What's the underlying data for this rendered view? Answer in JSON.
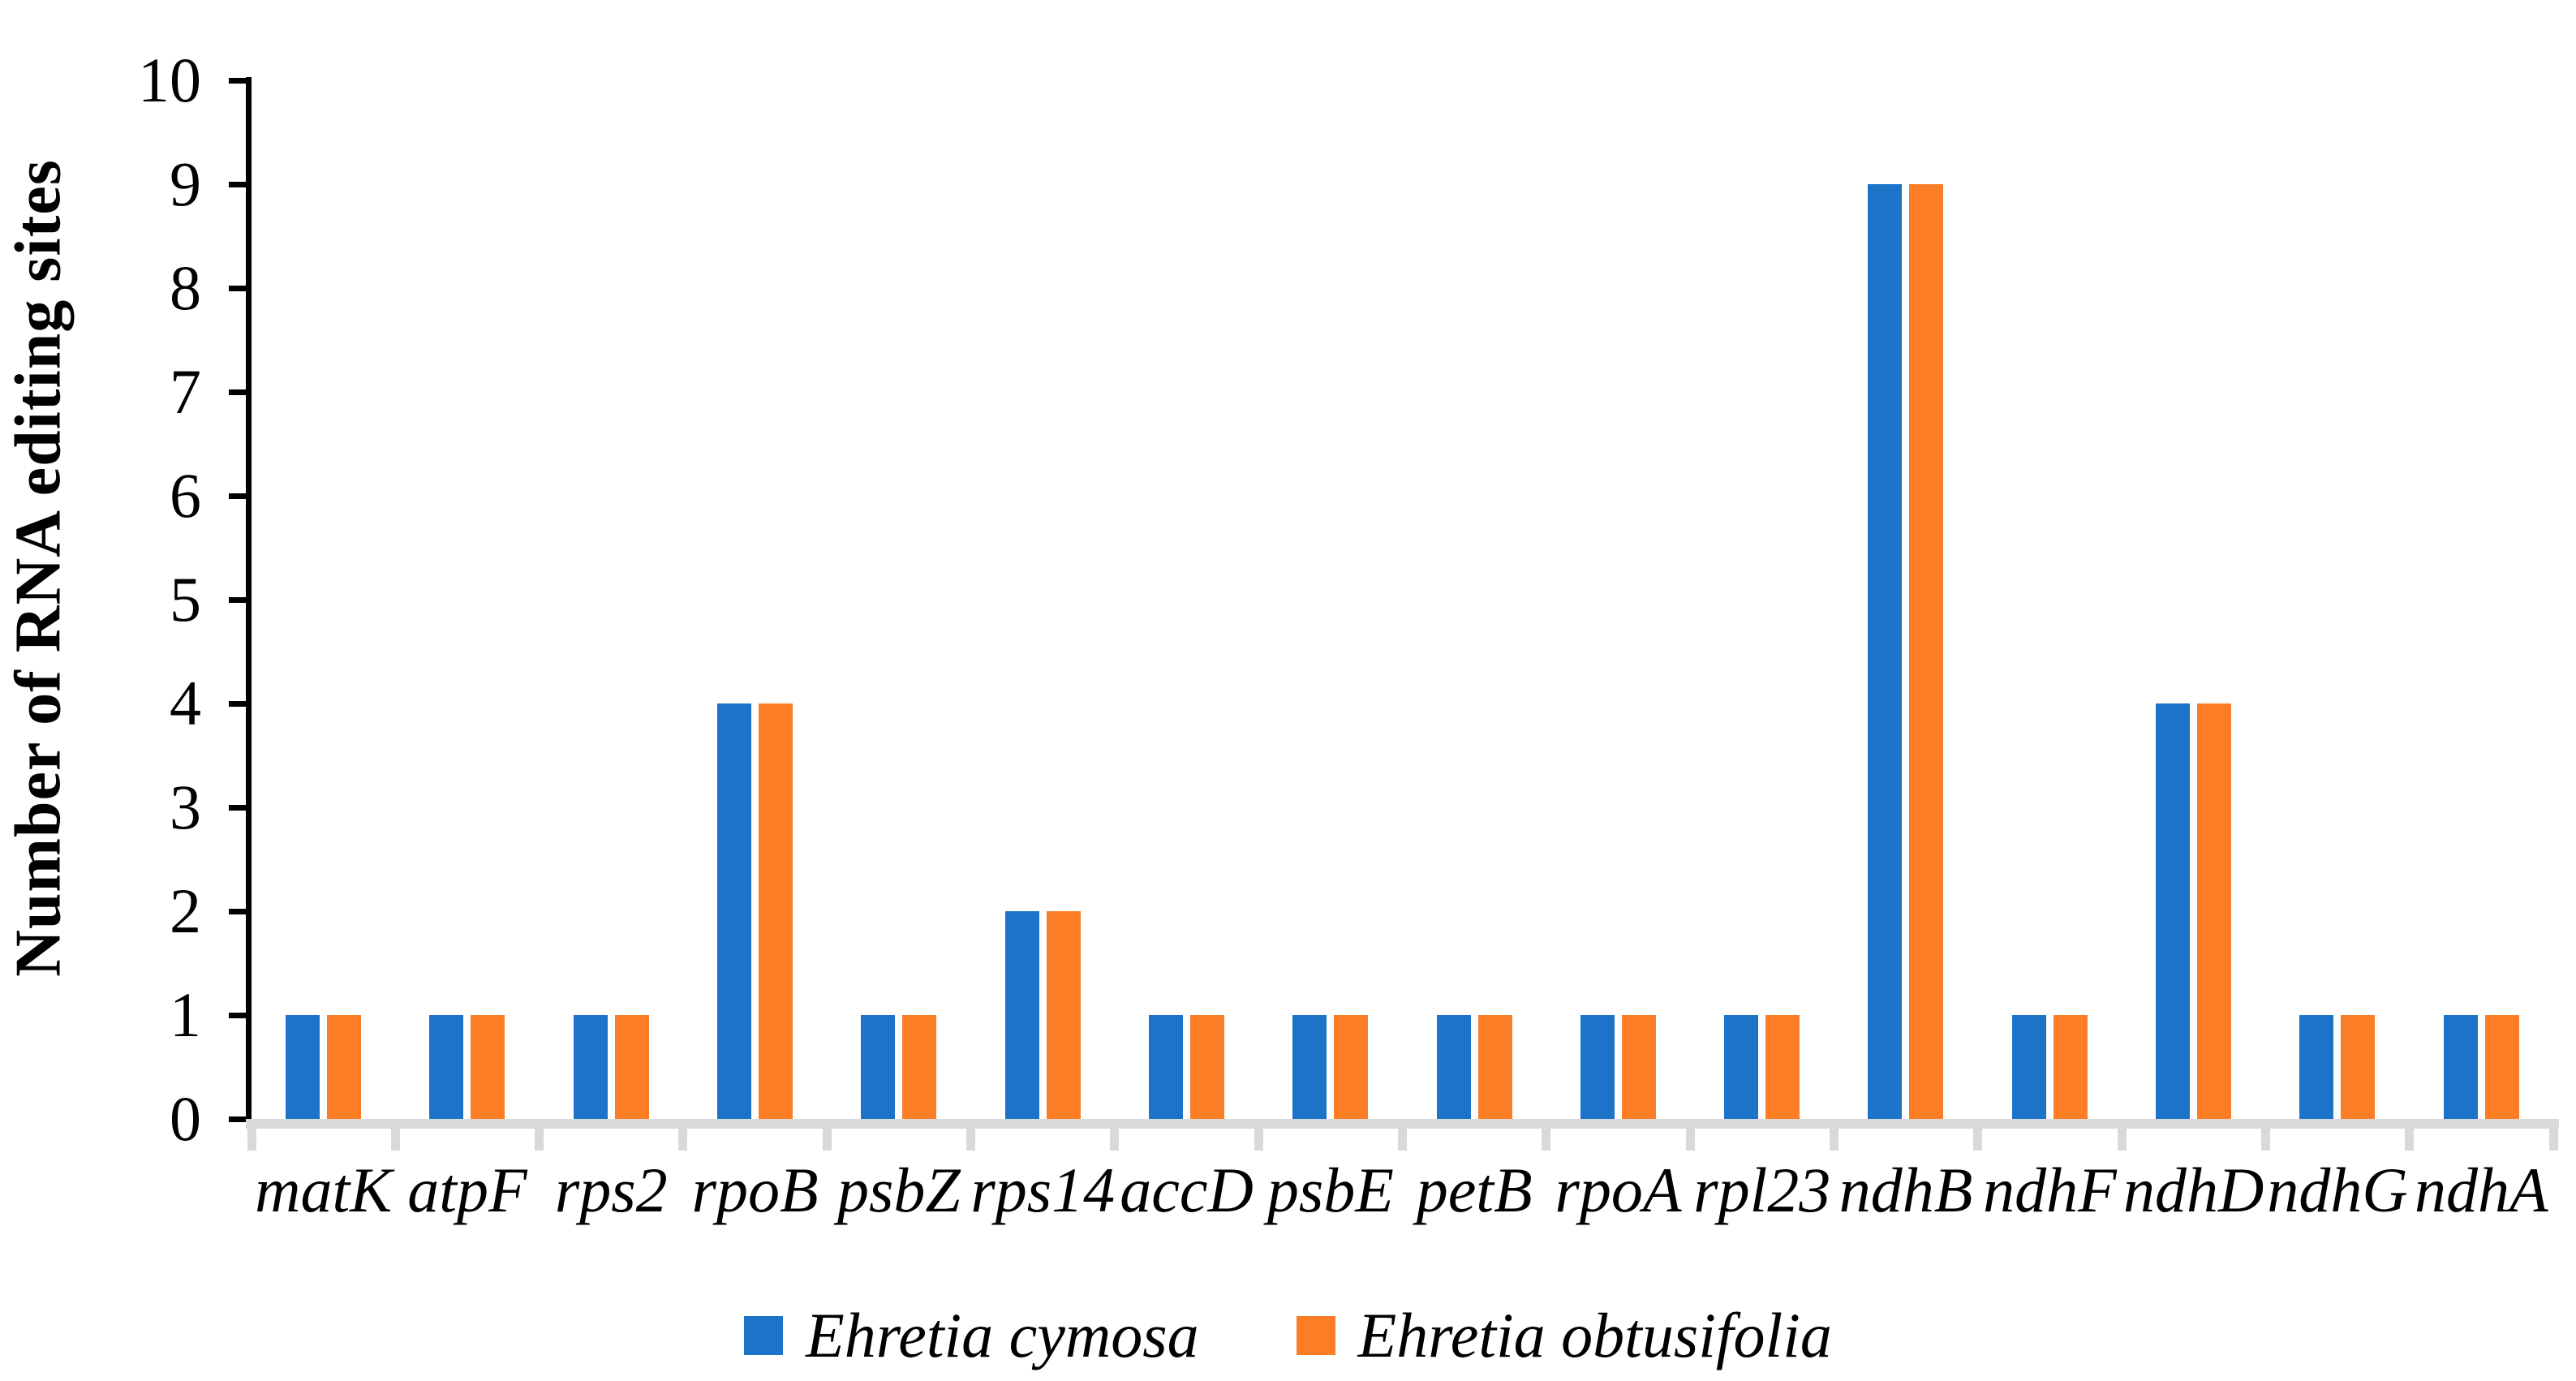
{
  "chart_data": {
    "type": "bar",
    "title": "",
    "xlabel": "",
    "ylabel": "Number of RNA editing sites",
    "ylim": [
      0,
      10
    ],
    "yticks": [
      0,
      1,
      2,
      3,
      4,
      5,
      6,
      7,
      8,
      9,
      10
    ],
    "grid": false,
    "legend_position": "bottom-center",
    "categories": [
      "matK",
      "atpF",
      "rps2",
      "rpoB",
      "psbZ",
      "rps14",
      "accD",
      "psbE",
      "petB",
      "rpoA",
      "rpl23",
      "ndhB",
      "ndhF",
      "ndhD",
      "ndhG",
      "ndhA"
    ],
    "series": [
      {
        "name": "Ehretia cymosa",
        "color": "#1b74c8",
        "values": [
          1,
          1,
          1,
          4,
          1,
          2,
          1,
          1,
          1,
          1,
          1,
          9,
          1,
          4,
          1,
          1
        ]
      },
      {
        "name": "Ehretia obtusifolia",
        "color": "#fb7d26",
        "values": [
          1,
          1,
          1,
          4,
          1,
          2,
          1,
          1,
          1,
          1,
          1,
          9,
          1,
          4,
          1,
          1
        ]
      }
    ],
    "axis_colors": {
      "y_axis": "#000000",
      "x_axis": "#d9d9d9"
    }
  }
}
